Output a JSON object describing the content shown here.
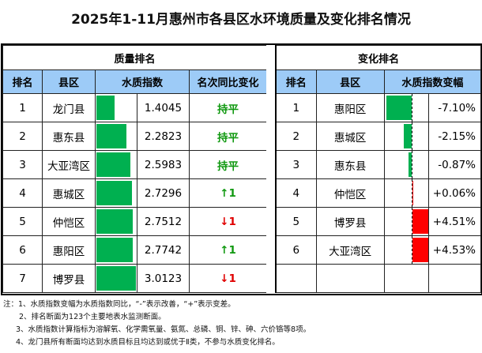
{
  "title": "2025年1-11月惠州市各县区水环境质量及变化排名情况",
  "colors": {
    "header_bg": "#9dcbf7",
    "good": "#00b050",
    "bad": "#ff0000"
  },
  "chart_data": {
    "type": "table",
    "quality": {
      "title": "质量排名",
      "headers": [
        "排名",
        "县区",
        "水质指数",
        "名次同比变化"
      ],
      "rows": [
        {
          "rank": "1",
          "county": "龙门县",
          "index": 1.4045,
          "index_text": "1.4045",
          "change": "持平",
          "dir": "flat"
        },
        {
          "rank": "2",
          "county": "惠东县",
          "index": 2.2823,
          "index_text": "2.2823",
          "change": "持平",
          "dir": "flat"
        },
        {
          "rank": "3",
          "county": "大亚湾区",
          "index": 2.5983,
          "index_text": "2.5983",
          "change": "持平",
          "dir": "flat"
        },
        {
          "rank": "4",
          "county": "惠城区",
          "index": 2.7296,
          "index_text": "2.7296",
          "change": "↑1",
          "dir": "up"
        },
        {
          "rank": "5",
          "county": "仲恺区",
          "index": 2.7512,
          "index_text": "2.7512",
          "change": "↓1",
          "dir": "down"
        },
        {
          "rank": "6",
          "county": "惠阳区",
          "index": 2.7742,
          "index_text": "2.7742",
          "change": "↑1",
          "dir": "up"
        },
        {
          "rank": "7",
          "county": "博罗县",
          "index": 3.0123,
          "index_text": "3.0123",
          "change": "↓1",
          "dir": "down"
        }
      ]
    },
    "change": {
      "title": "变化排名",
      "headers": [
        "排名",
        "县区",
        "水质指数变幅"
      ],
      "rows": [
        {
          "rank": "1",
          "county": "惠阳区",
          "pct": -7.1,
          "pct_text": "-7.10%"
        },
        {
          "rank": "2",
          "county": "惠城区",
          "pct": -2.15,
          "pct_text": "-2.15%"
        },
        {
          "rank": "3",
          "county": "惠东县",
          "pct": -0.87,
          "pct_text": "-0.87%"
        },
        {
          "rank": "4",
          "county": "仲恺区",
          "pct": 0.06,
          "pct_text": "+0.06%"
        },
        {
          "rank": "5",
          "county": "博罗县",
          "pct": 4.51,
          "pct_text": "+4.51%"
        },
        {
          "rank": "6",
          "county": "大亚湾区",
          "pct": 4.53,
          "pct_text": "+4.53%"
        }
      ]
    }
  },
  "notes": [
    "注：1、水质指数变幅为水质指数同比，“-”表示改善，“+”表示变差。",
    "2、排名断面为123个主要地表水监测断面。",
    "3、水质指数计算指标为溶解氧、化学需氧量、氨氮、总磷、铜、锌、砷、六价铬等8项。",
    "4、龙门县所有断面均达到水质目标且均达到或优于Ⅱ类，不参与水质变化排名。"
  ]
}
